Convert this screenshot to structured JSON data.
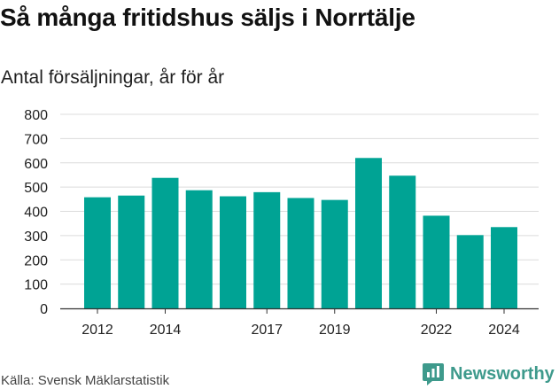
{
  "title": "Så många fritidshus säljs i Norrtälje",
  "subtitle": "Antal försäljningar, år för år",
  "source": "Källa: Svensk Mäklarstatistik",
  "brand": {
    "name": "Newsworthy",
    "icon": "newsworthy-logo-icon",
    "color": "#3e9a8c"
  },
  "chart_data": {
    "type": "bar",
    "x": [
      2012,
      2013,
      2014,
      2015,
      2016,
      2017,
      2018,
      2019,
      2020,
      2021,
      2022,
      2023,
      2024
    ],
    "values": [
      458,
      465,
      538,
      487,
      462,
      479,
      455,
      447,
      620,
      547,
      382,
      302,
      335
    ],
    "x_tick_labels": [
      "2012",
      "2014",
      "2017",
      "2019",
      "2022",
      "2024"
    ],
    "y_tick_labels": [
      "0",
      "100",
      "200",
      "300",
      "400",
      "500",
      "600",
      "700",
      "800"
    ],
    "ylim": [
      0,
      800
    ],
    "grid": "horizontal",
    "bar_color": "#00a394",
    "legend": "none"
  }
}
